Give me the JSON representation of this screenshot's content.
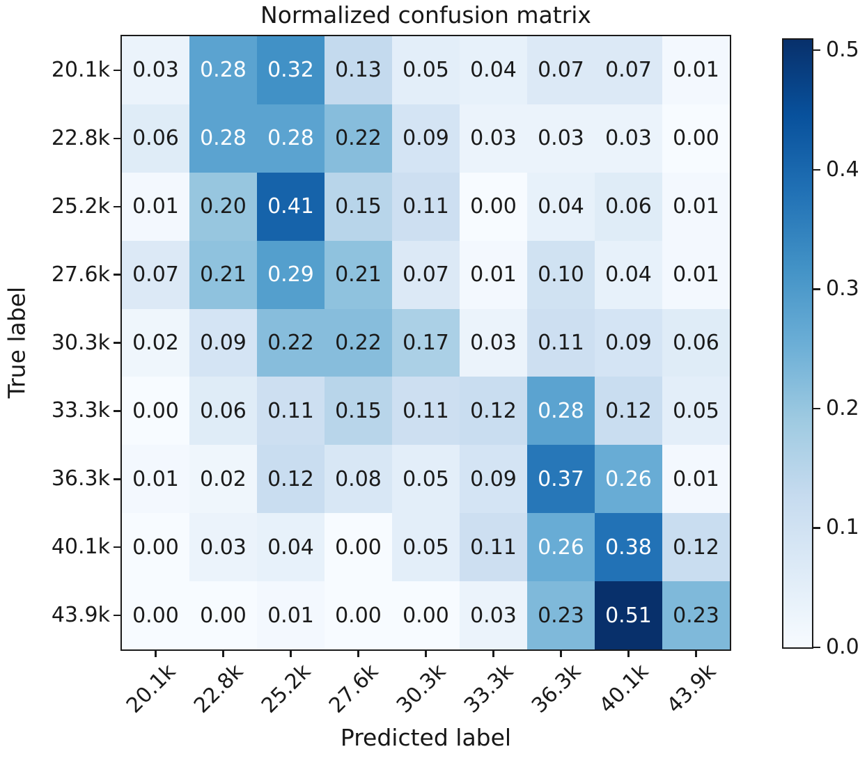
{
  "chart_data": {
    "type": "heatmap",
    "title": "Normalized confusion matrix",
    "xlabel": "Predicted label",
    "ylabel": "True label",
    "x_tick_labels": [
      "20.1k",
      "22.8k",
      "25.2k",
      "27.6k",
      "30.3k",
      "33.3k",
      "36.3k",
      "40.1k",
      "43.9k"
    ],
    "y_tick_labels": [
      "20.1k",
      "22.8k",
      "25.2k",
      "27.6k",
      "30.3k",
      "33.3k",
      "36.3k",
      "40.1k",
      "43.9k"
    ],
    "values": [
      [
        0.03,
        0.28,
        0.32,
        0.13,
        0.05,
        0.04,
        0.07,
        0.07,
        0.01
      ],
      [
        0.06,
        0.28,
        0.28,
        0.22,
        0.09,
        0.03,
        0.03,
        0.03,
        0.0
      ],
      [
        0.01,
        0.2,
        0.41,
        0.15,
        0.11,
        0.0,
        0.04,
        0.06,
        0.01
      ],
      [
        0.07,
        0.21,
        0.29,
        0.21,
        0.07,
        0.01,
        0.1,
        0.04,
        0.01
      ],
      [
        0.02,
        0.09,
        0.22,
        0.22,
        0.17,
        0.03,
        0.11,
        0.09,
        0.06
      ],
      [
        0.0,
        0.06,
        0.11,
        0.15,
        0.11,
        0.12,
        0.28,
        0.12,
        0.05
      ],
      [
        0.01,
        0.02,
        0.12,
        0.08,
        0.05,
        0.09,
        0.37,
        0.26,
        0.01
      ],
      [
        0.0,
        0.03,
        0.04,
        0.0,
        0.05,
        0.11,
        0.26,
        0.38,
        0.12
      ],
      [
        0.0,
        0.0,
        0.01,
        0.0,
        0.0,
        0.03,
        0.23,
        0.51,
        0.23
      ]
    ],
    "vmin": 0.0,
    "vmax": 0.51,
    "colormap": "Blues",
    "colormap_stops": [
      {
        "t": 0.0,
        "color": "#f7fbff"
      },
      {
        "t": 0.125,
        "color": "#deebf7"
      },
      {
        "t": 0.25,
        "color": "#c6dbef"
      },
      {
        "t": 0.375,
        "color": "#9ecae1"
      },
      {
        "t": 0.5,
        "color": "#6baed6"
      },
      {
        "t": 0.625,
        "color": "#4292c6"
      },
      {
        "t": 0.75,
        "color": "#2171b5"
      },
      {
        "t": 0.875,
        "color": "#08519c"
      },
      {
        "t": 1.0,
        "color": "#08306b"
      }
    ],
    "cell_text_threshold": 0.255,
    "cell_text_color_dark": "#1a1a1a",
    "cell_text_color_light": "#ffffff",
    "grid": false,
    "legend_position": "colorbar-right",
    "colorbar": {
      "ticks": [
        0.0,
        0.1,
        0.2,
        0.3,
        0.4,
        0.5
      ],
      "tick_labels": [
        "0.0",
        "0.1",
        "0.2",
        "0.3",
        "0.4",
        "0.5"
      ]
    }
  },
  "colors": {
    "background": "#ffffff",
    "axis": "#1a1a1a",
    "text": "#171717"
  }
}
